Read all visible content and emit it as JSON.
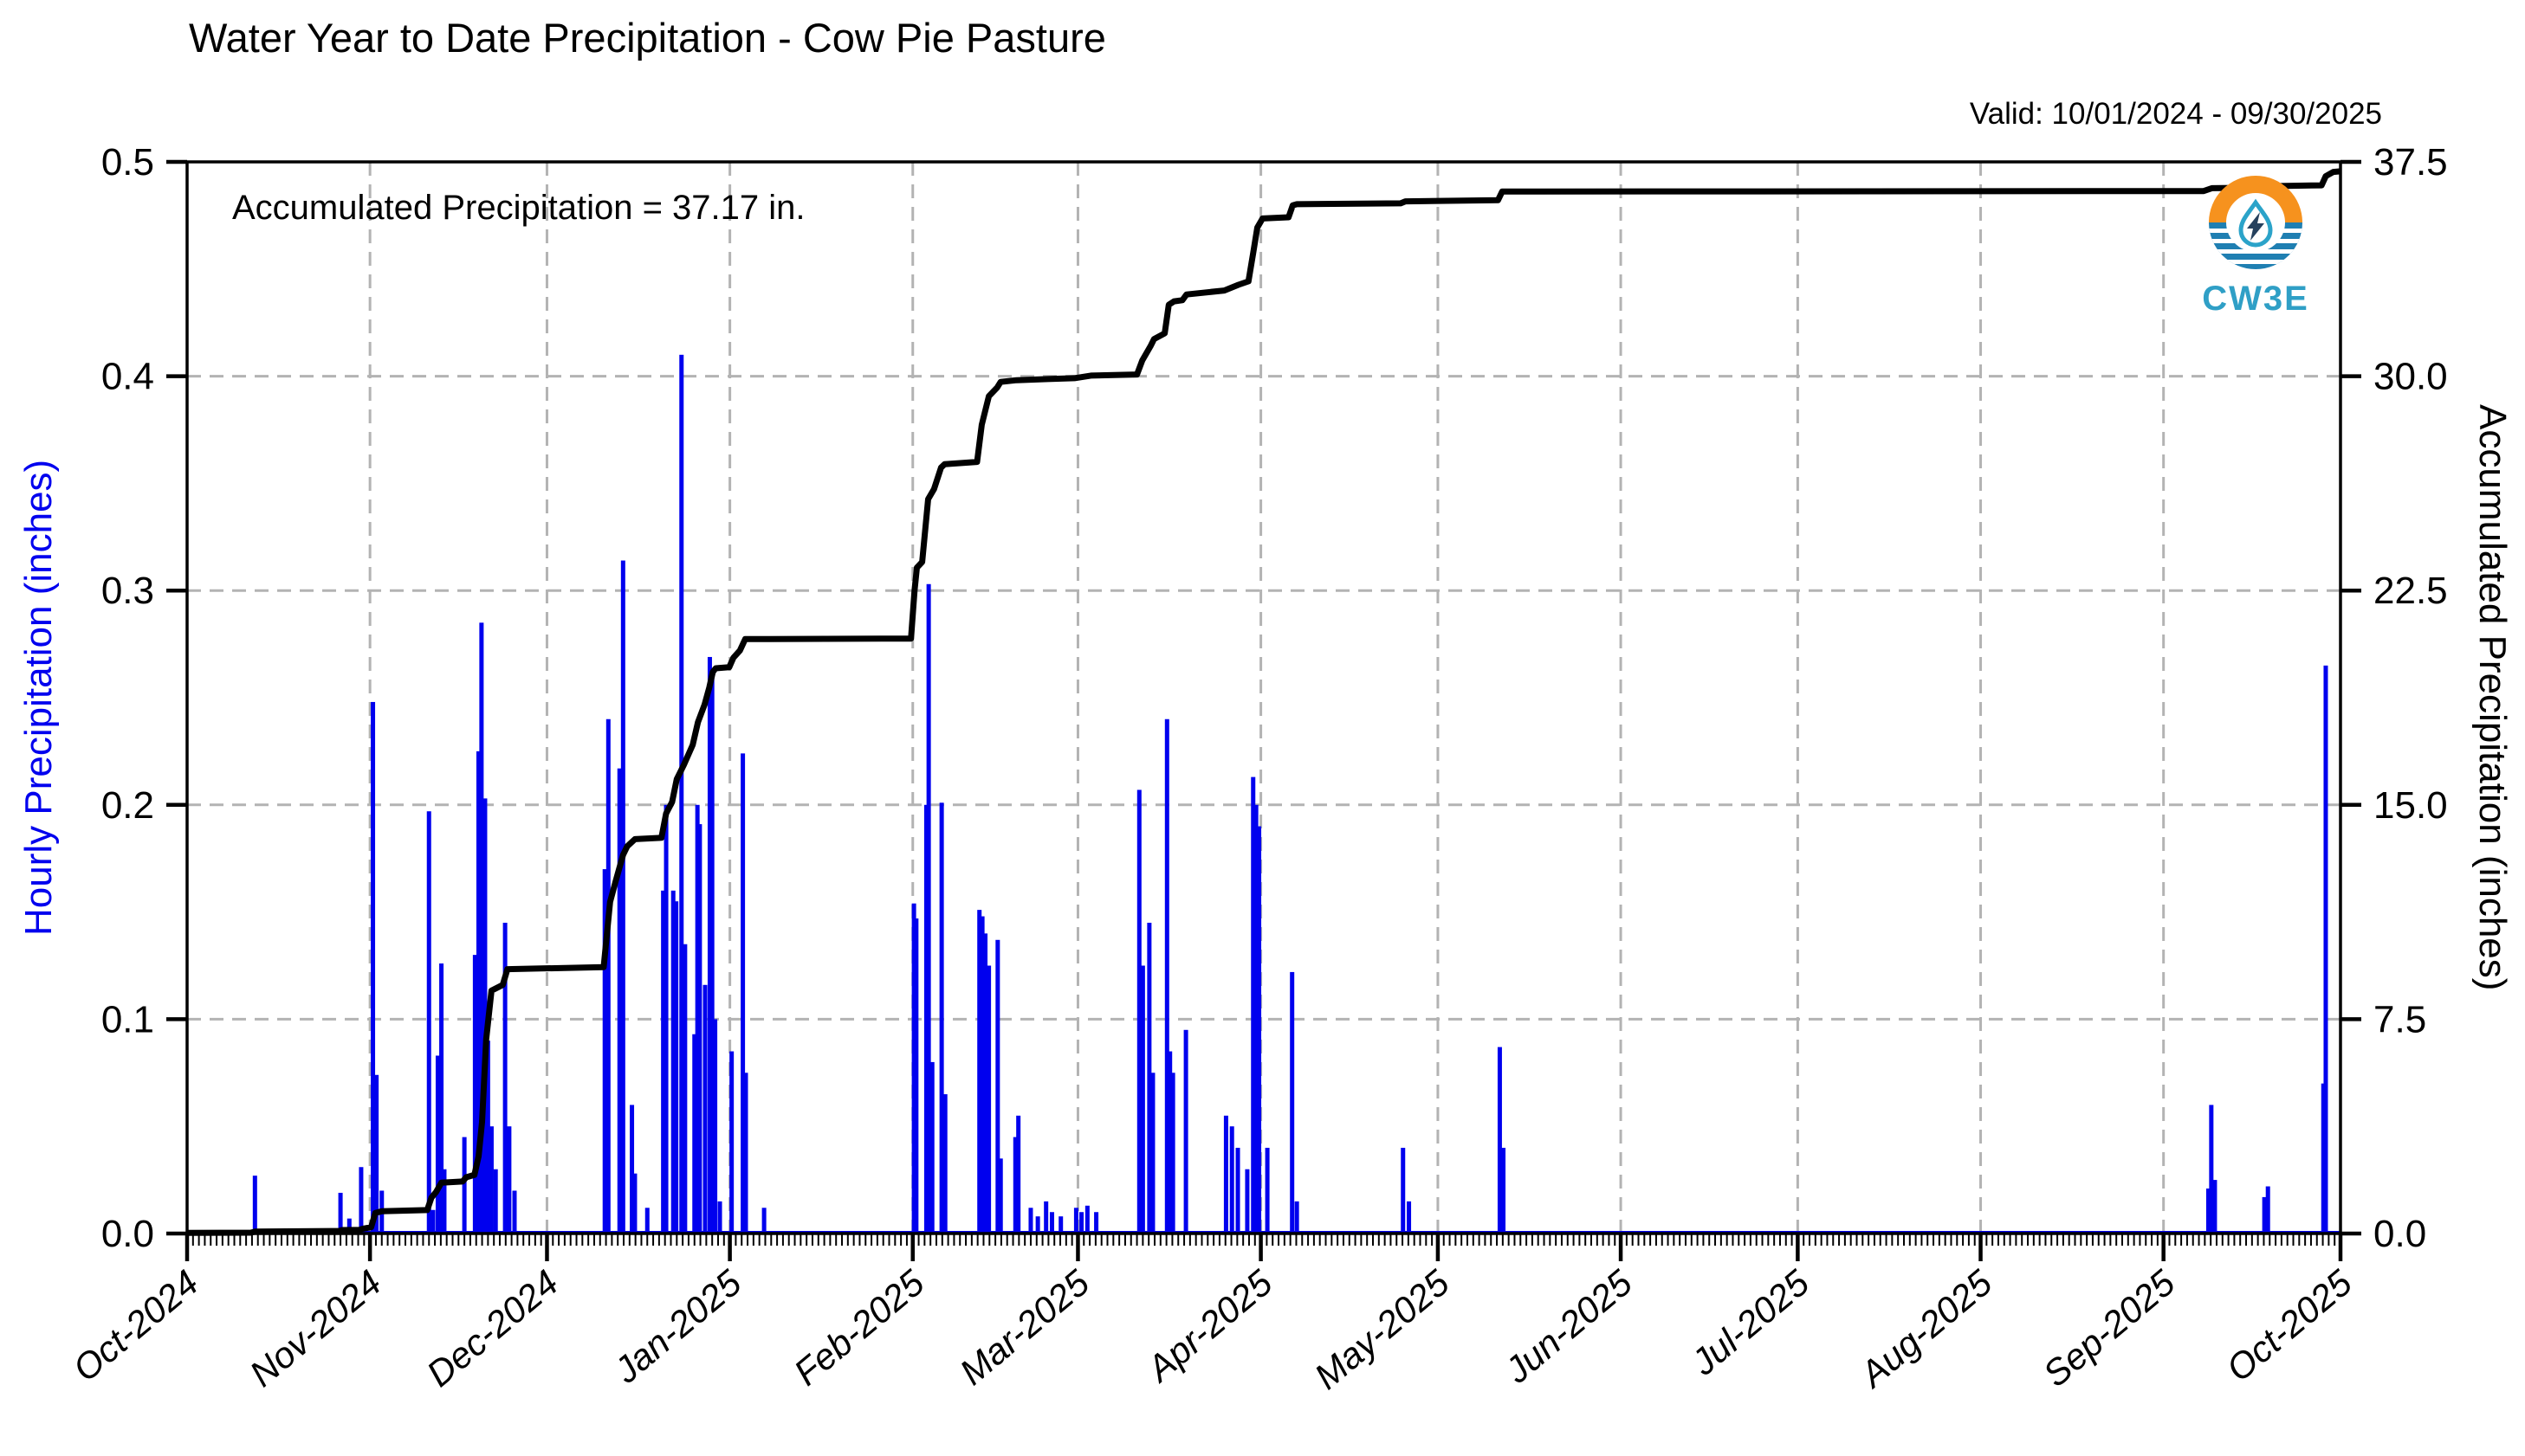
{
  "figure": {
    "title": "Water Year to Date Precipitation - Cow Pie Pasture",
    "valid_label": "Valid: 10/01/2024 - 09/30/2025",
    "annotation": "Accumulated Precipitation = 37.17 in.",
    "logo_text": "CW3E"
  },
  "colors": {
    "bar_blue": "#0000ee",
    "line_black": "#000000",
    "grid_gray": "#b3b3b3",
    "axis_black": "#000000",
    "left_label_blue": "#0000ee",
    "logo_orange": "#f6921e",
    "logo_blue": "#1f7fb2",
    "logo_teal": "#2ba3c9",
    "logo_bolt": "#26415e",
    "logo_text_blue": "#2f9fc6"
  },
  "chart_data": {
    "type": "bar+line",
    "title": "Water Year to Date Precipitation - Cow Pie Pasture",
    "subtitle": "Valid: 10/01/2024 - 09/30/2025",
    "annotation": "Accumulated Precipitation = 37.17 in.",
    "accumulated_total_in": 37.17,
    "legend_position": "none",
    "grid": {
      "style": "dashed",
      "vertical": "monthly",
      "horizontal_step_left_axis": 0.1
    },
    "x_axis": {
      "unit": "days since 2024-10-01",
      "domain_days": [
        0,
        365
      ],
      "tick_days": [
        0,
        31,
        61,
        92,
        123,
        151,
        182,
        212,
        243,
        273,
        304,
        335,
        365
      ],
      "tick_labels": [
        "Oct-2024",
        "Nov-2024",
        "Dec-2024",
        "Jan-2025",
        "Feb-2025",
        "Mar-2025",
        "Apr-2025",
        "May-2025",
        "Jun-2025",
        "Jul-2025",
        "Aug-2025",
        "Sep-2025",
        "Oct-2025"
      ],
      "minor_ticks": "daily"
    },
    "left_y_axis": {
      "label": "Hourly Precipitation (inches)",
      "range": [
        0,
        0.5
      ],
      "tick_values": [
        0.0,
        0.1,
        0.2,
        0.3,
        0.4,
        0.5
      ],
      "tick_labels": [
        "0.0",
        "0.1",
        "0.2",
        "0.3",
        "0.4",
        "0.5"
      ]
    },
    "right_y_axis": {
      "label": "Accumulated Precipitation (inches)",
      "range": [
        0,
        37.5
      ],
      "tick_values": [
        0.0,
        7.5,
        15.0,
        22.5,
        30.0,
        37.5
      ],
      "tick_labels": [
        "0.0",
        "7.5",
        "15.0",
        "22.5",
        "30.0",
        "37.5"
      ]
    },
    "series": [
      {
        "name": "Hourly Precipitation",
        "type": "bar",
        "axis": "left",
        "color": "#0000ee",
        "points": [
          [
            11.5,
            0.027
          ],
          [
            26,
            0.019
          ],
          [
            27.5,
            0.007
          ],
          [
            29.5,
            0.031
          ],
          [
            31.5,
            0.248
          ],
          [
            32.1,
            0.074
          ],
          [
            33,
            0.02
          ],
          [
            41,
            0.197
          ],
          [
            41.7,
            0.011
          ],
          [
            42.5,
            0.083
          ],
          [
            43.1,
            0.126
          ],
          [
            43.6,
            0.03
          ],
          [
            47,
            0.045
          ],
          [
            48.8,
            0.13
          ],
          [
            49.4,
            0.225
          ],
          [
            49.9,
            0.285
          ],
          [
            50.5,
            0.203
          ],
          [
            51,
            0.09
          ],
          [
            51.6,
            0.05
          ],
          [
            52.3,
            0.03
          ],
          [
            53.9,
            0.145
          ],
          [
            54.6,
            0.05
          ],
          [
            55.5,
            0.02
          ],
          [
            70.8,
            0.17
          ],
          [
            71.4,
            0.24
          ],
          [
            73.3,
            0.217
          ],
          [
            73.9,
            0.314
          ],
          [
            75.4,
            0.06
          ],
          [
            75.9,
            0.028
          ],
          [
            78,
            0.012
          ],
          [
            80.7,
            0.16
          ],
          [
            81.2,
            0.2
          ],
          [
            82.4,
            0.16
          ],
          [
            82.9,
            0.155
          ],
          [
            83.8,
            0.41
          ],
          [
            84.4,
            0.135
          ],
          [
            86,
            0.093
          ],
          [
            86.5,
            0.2
          ],
          [
            86.9,
            0.191
          ],
          [
            87.8,
            0.116
          ],
          [
            88.6,
            0.269
          ],
          [
            89,
            0.262
          ],
          [
            89.5,
            0.1
          ],
          [
            90.3,
            0.015
          ],
          [
            92.3,
            0.085
          ],
          [
            94.2,
            0.224
          ],
          [
            94.7,
            0.075
          ],
          [
            97.8,
            0.012
          ],
          [
            123.2,
            0.154
          ],
          [
            123.6,
            0.147
          ],
          [
            125.3,
            0.2
          ],
          [
            125.7,
            0.303
          ],
          [
            126.3,
            0.08
          ],
          [
            127.9,
            0.201
          ],
          [
            128.5,
            0.065
          ],
          [
            134.3,
            0.151
          ],
          [
            134.8,
            0.148
          ],
          [
            135.3,
            0.14
          ],
          [
            135.9,
            0.125
          ],
          [
            137.4,
            0.137
          ],
          [
            137.9,
            0.035
          ],
          [
            140.4,
            0.045
          ],
          [
            140.9,
            0.055
          ],
          [
            143,
            0.012
          ],
          [
            144.2,
            0.008
          ],
          [
            145.6,
            0.015
          ],
          [
            146.6,
            0.01
          ],
          [
            148.1,
            0.008
          ],
          [
            150.7,
            0.012
          ],
          [
            151.6,
            0.01
          ],
          [
            152.6,
            0.013
          ],
          [
            154.1,
            0.01
          ],
          [
            161.4,
            0.207
          ],
          [
            162,
            0.125
          ],
          [
            163.1,
            0.145
          ],
          [
            163.7,
            0.075
          ],
          [
            166.1,
            0.24
          ],
          [
            166.6,
            0.085
          ],
          [
            167.1,
            0.075
          ],
          [
            169.3,
            0.095
          ],
          [
            176.1,
            0.055
          ],
          [
            177.1,
            0.05
          ],
          [
            178.1,
            0.04
          ],
          [
            179.7,
            0.03
          ],
          [
            180.7,
            0.213
          ],
          [
            181.2,
            0.2
          ],
          [
            181.7,
            0.19
          ],
          [
            183.1,
            0.04
          ],
          [
            187.3,
            0.122
          ],
          [
            188.1,
            0.015
          ],
          [
            206.1,
            0.04
          ],
          [
            207.1,
            0.015
          ],
          [
            222.5,
            0.087
          ],
          [
            223.1,
            0.04
          ],
          [
            342.6,
            0.021
          ],
          [
            343.1,
            0.06
          ],
          [
            343.7,
            0.025
          ],
          [
            352.1,
            0.017
          ],
          [
            352.7,
            0.022
          ],
          [
            362.1,
            0.07
          ],
          [
            362.5,
            0.265
          ]
        ]
      },
      {
        "name": "Accumulated Precipitation",
        "type": "line",
        "axis": "right",
        "color": "#000000",
        "points": [
          [
            0,
            0.02
          ],
          [
            10.8,
            0.03
          ],
          [
            11.6,
            0.07
          ],
          [
            25.8,
            0.09
          ],
          [
            26.3,
            0.12
          ],
          [
            29.2,
            0.13
          ],
          [
            29.8,
            0.17
          ],
          [
            31.2,
            0.22
          ],
          [
            31.9,
            0.72
          ],
          [
            33,
            0.78
          ],
          [
            40.7,
            0.82
          ],
          [
            41.4,
            1.25
          ],
          [
            42.2,
            1.45
          ],
          [
            43.1,
            1.78
          ],
          [
            46.7,
            1.82
          ],
          [
            47.3,
            1.97
          ],
          [
            48.7,
            2.05
          ],
          [
            49.4,
            2.7
          ],
          [
            50,
            3.9
          ],
          [
            50.7,
            6.8
          ],
          [
            51.6,
            8.5
          ],
          [
            53.5,
            8.7
          ],
          [
            54.3,
            9.25
          ],
          [
            70.6,
            9.32
          ],
          [
            71.7,
            11.6
          ],
          [
            72.6,
            12.3
          ],
          [
            73.9,
            13.25
          ],
          [
            74.6,
            13.55
          ],
          [
            75.9,
            13.8
          ],
          [
            80.4,
            13.85
          ],
          [
            81.2,
            14.7
          ],
          [
            82.2,
            15.1
          ],
          [
            83,
            15.9
          ],
          [
            84.2,
            16.4
          ],
          [
            85.7,
            17.1
          ],
          [
            86.6,
            17.9
          ],
          [
            87.7,
            18.5
          ],
          [
            88.5,
            19.1
          ],
          [
            89.1,
            19.65
          ],
          [
            89.6,
            19.78
          ],
          [
            91.9,
            19.82
          ],
          [
            92.6,
            20.15
          ],
          [
            93.7,
            20.4
          ],
          [
            94.6,
            20.8
          ],
          [
            122.7,
            20.82
          ],
          [
            123.3,
            22.5
          ],
          [
            123.7,
            23.3
          ],
          [
            124.6,
            23.5
          ],
          [
            125.6,
            25.7
          ],
          [
            126.6,
            26.05
          ],
          [
            127.8,
            26.8
          ],
          [
            128.4,
            26.92
          ],
          [
            133.9,
            27.0
          ],
          [
            134.7,
            28.3
          ],
          [
            135.9,
            29.3
          ],
          [
            137.3,
            29.6
          ],
          [
            137.9,
            29.8
          ],
          [
            140.6,
            29.86
          ],
          [
            145.9,
            29.9
          ],
          [
            150.4,
            29.93
          ],
          [
            153.2,
            30.02
          ],
          [
            161,
            30.06
          ],
          [
            161.9,
            30.55
          ],
          [
            163.3,
            31.05
          ],
          [
            163.9,
            31.3
          ],
          [
            165.7,
            31.5
          ],
          [
            166.4,
            32.5
          ],
          [
            167.3,
            32.62
          ],
          [
            168.7,
            32.66
          ],
          [
            169.4,
            32.86
          ],
          [
            175.8,
            33.0
          ],
          [
            178.2,
            33.2
          ],
          [
            179.9,
            33.32
          ],
          [
            180.7,
            34.3
          ],
          [
            181.4,
            35.2
          ],
          [
            182.3,
            35.52
          ],
          [
            186.7,
            35.56
          ],
          [
            187.4,
            35.98
          ],
          [
            188.1,
            36.02
          ],
          [
            205.7,
            36.05
          ],
          [
            206.5,
            36.12
          ],
          [
            222.2,
            36.16
          ],
          [
            222.9,
            36.46
          ],
          [
            341.8,
            36.48
          ],
          [
            343.2,
            36.58
          ],
          [
            351.8,
            36.6
          ],
          [
            352.6,
            36.65
          ],
          [
            361.8,
            36.68
          ],
          [
            362.5,
            37.0
          ],
          [
            363.8,
            37.15
          ],
          [
            365,
            37.17
          ]
        ]
      }
    ]
  }
}
